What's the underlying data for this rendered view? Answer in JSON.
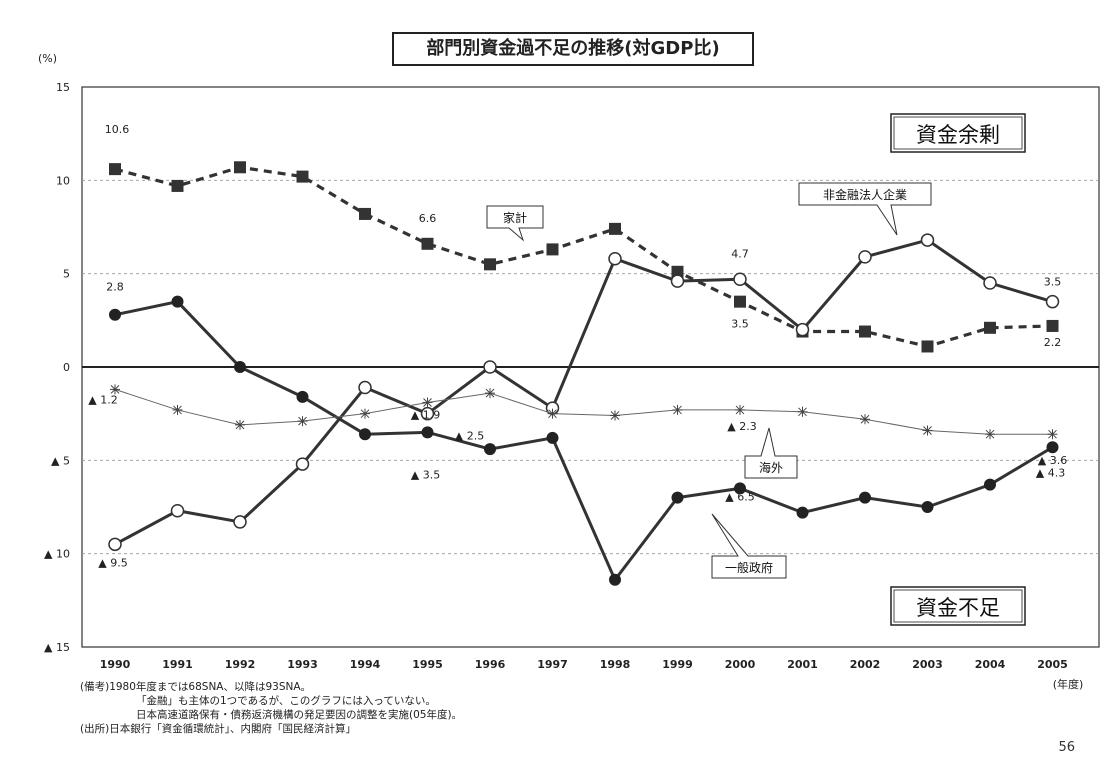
{
  "chart_data": {
    "type": "line",
    "title": "部門別資金過不足の推移(対GDP比)",
    "y_unit": "(%)",
    "x_unit": "(年度)",
    "categories": [
      "1990",
      "1991",
      "1992",
      "1993",
      "1994",
      "1995",
      "1996",
      "1997",
      "1998",
      "1999",
      "2000",
      "2001",
      "2002",
      "2003",
      "2004",
      "2005"
    ],
    "ylim": [
      -15,
      15
    ],
    "y_ticks": [
      {
        "value": 15,
        "label": "15"
      },
      {
        "value": 10,
        "label": "10"
      },
      {
        "value": 5,
        "label": "5"
      },
      {
        "value": 0,
        "label": "0"
      },
      {
        "value": -5,
        "label": "▲ 5"
      },
      {
        "value": -10,
        "label": "▲ 10"
      },
      {
        "value": -15,
        "label": "▲ 15"
      }
    ],
    "grid": true,
    "series": [
      {
        "name": "家計",
        "color": "#333333",
        "style": "dashed",
        "marker": "square",
        "values": [
          10.6,
          9.7,
          10.7,
          10.2,
          8.2,
          6.6,
          5.5,
          6.3,
          7.4,
          5.1,
          3.5,
          1.9,
          1.9,
          1.1,
          2.1,
          2.2
        ]
      },
      {
        "name": "非金融法人企業",
        "color": "#333333",
        "style": "solid",
        "marker": "circle-open",
        "values": [
          -9.5,
          -7.7,
          -8.3,
          -5.2,
          -1.1,
          -2.5,
          0.0,
          -2.2,
          5.8,
          4.6,
          4.7,
          2.0,
          5.9,
          6.8,
          4.5,
          3.5
        ]
      },
      {
        "name": "一般政府",
        "color": "#333333",
        "style": "solid",
        "marker": "circle-filled",
        "values": [
          2.8,
          3.5,
          0.0,
          -1.6,
          -3.6,
          -3.5,
          -4.4,
          -3.8,
          -11.4,
          -7.0,
          -6.5,
          -7.8,
          -7.0,
          -7.5,
          -6.3,
          -4.3
        ]
      },
      {
        "name": "海外",
        "color": "#555555",
        "style": "thin",
        "marker": "star",
        "values": [
          -1.2,
          -2.3,
          -3.1,
          -2.9,
          -2.5,
          -1.9,
          -1.4,
          -2.5,
          -2.6,
          -2.3,
          -2.3,
          -2.4,
          -2.8,
          -3.4,
          -3.6,
          -3.6
        ]
      }
    ],
    "point_labels": [
      {
        "text": "10.6",
        "x": "1990",
        "y": 10.6
      },
      {
        "text": "6.6",
        "x": "1995",
        "y": 6.6
      },
      {
        "text": "4.7",
        "x": "2000",
        "y": 4.7
      },
      {
        "text": "3.5",
        "x": "2000",
        "y": 3.5
      },
      {
        "text": "3.5",
        "x": "2005",
        "y": 3.5
      },
      {
        "text": "2.2",
        "x": "2005",
        "y": 2.2
      },
      {
        "text": "2.8",
        "x": "1990",
        "y": 2.8
      },
      {
        "text": "▲ 1.2",
        "x": "1990",
        "y": -1.2
      },
      {
        "text": "▲ 1.9",
        "x": "1995",
        "y": -1.9
      },
      {
        "text": "▲ 2.5",
        "x": "1995",
        "y": -2.5
      },
      {
        "text": "▲ 3.5",
        "x": "1995",
        "y": -3.5
      },
      {
        "text": "▲ 2.3",
        "x": "2000",
        "y": -2.3
      },
      {
        "text": "▲ 6.5",
        "x": "2000",
        "y": -6.5
      },
      {
        "text": "▲ 3.6",
        "x": "2005",
        "y": -3.6
      },
      {
        "text": "▲ 4.3",
        "x": "2005",
        "y": -4.3
      },
      {
        "text": "▲ 9.5",
        "x": "1990",
        "y": -9.5
      }
    ],
    "region_labels": {
      "surplus": "資金余剰",
      "deficit": "資金不足"
    },
    "callouts": {
      "household": "家計",
      "corporate": "非金融法人企業",
      "foreign": "海外",
      "government": "一般政府"
    }
  },
  "notes": [
    "(備考)1980年度までは68SNA、以降は93SNA。",
    "「金融」も主体の1つであるが、このグラフには入っていない。",
    "日本高速道路保有・債務返済機構の発足要因の調整を実施(05年度)。",
    "(出所)日本銀行「資金循環統計」、内閣府「国民経済計算」"
  ],
  "page_number": "56"
}
